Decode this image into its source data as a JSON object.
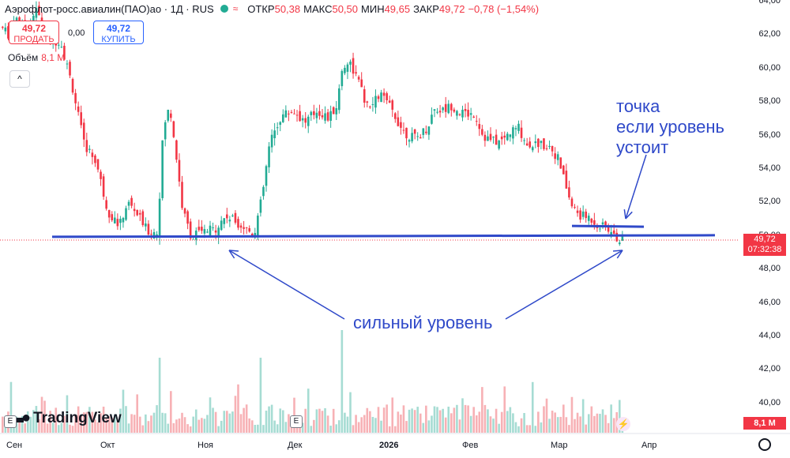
{
  "header": {
    "symbol": "Аэрофлот-росс.авиалин(ПАО)ао · 1Д · RUS",
    "open_label": "ОТКР",
    "open_value": "50,38",
    "high_label": "МАКС",
    "high_value": "50,50",
    "low_label": "МИН",
    "low_value": "49,65",
    "close_label": "ЗАКР",
    "close_value": "49,72",
    "change": "−0,78 (−1,54%)"
  },
  "trade": {
    "sell_price": "49,72",
    "sell_label": "ПРОДАТЬ",
    "spread": "0,00",
    "buy_price": "49,72",
    "buy_label": "КУПИТЬ"
  },
  "volume_label": {
    "name": "Объём",
    "value": "8,1 М"
  },
  "collapse_icon": "^",
  "y_axis": [
    "64,00",
    "62,00",
    "60,00",
    "58,00",
    "56,00",
    "54,00",
    "52,00",
    "50,00",
    "48,00",
    "46,00",
    "44,00",
    "42,00",
    "40,00"
  ],
  "x_axis": [
    "Сен",
    "Окт",
    "Ноя",
    "Дек",
    "2026",
    "Фев",
    "Мар",
    "Апр"
  ],
  "price_tag": {
    "price": "49,72",
    "time": "07:32:38"
  },
  "volume_tag": "8,1 М",
  "brand": "TradingView",
  "event_badge": "E",
  "annotations": {
    "top": [
      "точка",
      "если уровень",
      "устоит"
    ],
    "bottom": "сильный уровень"
  },
  "colors": {
    "up": "#22ab94",
    "down": "#f23645",
    "annotation": "#2f49c9"
  },
  "chart_data": {
    "type": "candlestick",
    "ylim": [
      39,
      64
    ],
    "key_levels": [
      49.9,
      50.6
    ],
    "last_price": 49.72
  }
}
